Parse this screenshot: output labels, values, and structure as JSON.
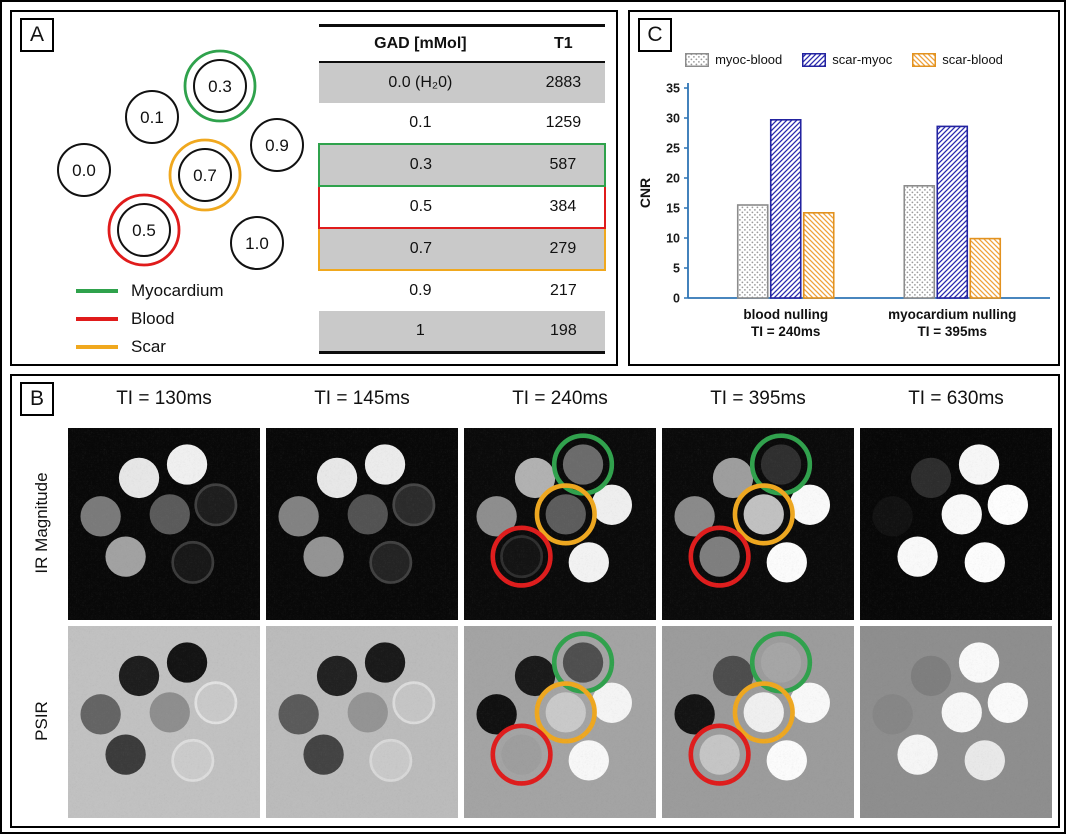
{
  "figure": {
    "panel_a": {
      "label": "A",
      "vials": [
        {
          "label": "0.3",
          "ring": "myocardium"
        },
        {
          "label": "0.1",
          "ring": null
        },
        {
          "label": "0.9",
          "ring": null
        },
        {
          "label": "0.0",
          "ring": null
        },
        {
          "label": "0.7",
          "ring": "scar"
        },
        {
          "label": "0.5",
          "ring": "blood"
        },
        {
          "label": "1.0",
          "ring": null
        }
      ],
      "legend": [
        {
          "name": "Myocardium",
          "tissue": "myocardium"
        },
        {
          "name": "Blood",
          "tissue": "blood"
        },
        {
          "name": "Scar",
          "tissue": "scar"
        }
      ],
      "table": {
        "headers": [
          "GAD [mMol]",
          "T1"
        ],
        "rows": [
          {
            "gad": "0.0 (H₂0)",
            "t1": "2883",
            "shaded": true,
            "outline": null
          },
          {
            "gad": "0.1",
            "t1": "1259",
            "shaded": false,
            "outline": null
          },
          {
            "gad": "0.3",
            "t1": "587",
            "shaded": true,
            "outline": "myocardium"
          },
          {
            "gad": "0.5",
            "t1": "384",
            "shaded": false,
            "outline": "blood"
          },
          {
            "gad": "0.7",
            "t1": "279",
            "shaded": true,
            "outline": "scar"
          },
          {
            "gad": "0.9",
            "t1": "217",
            "shaded": false,
            "outline": null
          },
          {
            "gad": "1",
            "t1": "198",
            "shaded": true,
            "outline": null
          }
        ]
      }
    },
    "panel_c": {
      "label": "C"
    },
    "panel_b": {
      "label": "B",
      "column_headers": [
        "TI = 130ms",
        "TI = 145ms",
        "TI = 240ms",
        "TI = 395ms",
        "TI = 630ms"
      ],
      "row_labels": [
        "IR Magnitude",
        "PSIR"
      ],
      "images": [
        {
          "row": "IR Magnitude",
          "column": "TI = 130ms",
          "bg": "#070707",
          "vials": {
            "0.0": "#7a7a7a",
            "0.1": "#e8e8e8",
            "0.3": "#f1f1f1",
            "0.5": "#a2a2a2",
            "0.7": "#5a5a5a",
            "0.9": "#1c1c1c",
            "1.0": "#161616"
          },
          "edges": {
            "0.9": "#3f3f3f",
            "1.0": "#3a3a3a"
          },
          "rings": {}
        },
        {
          "row": "IR Magnitude",
          "column": "TI = 145ms",
          "bg": "#070707",
          "vials": {
            "0.0": "#828282",
            "0.1": "#e9e9e9",
            "0.3": "#ededed",
            "0.5": "#949494",
            "0.7": "#525252",
            "0.9": "#2a2a2a",
            "1.0": "#222222"
          },
          "edges": {
            "0.9": "#454545",
            "1.0": "#404040"
          },
          "rings": {}
        },
        {
          "row": "IR Magnitude",
          "column": "TI = 240ms",
          "bg": "#090909",
          "vials": {
            "0.0": "#8e8e8e",
            "0.1": "#b2b2b2",
            "0.3": "#6b6b6b",
            "0.5": "#121212",
            "0.7": "#5c5c5c",
            "0.9": "#f0f0f0",
            "1.0": "#f4f4f4"
          },
          "edges": {
            "0.5": "#2e2e2e"
          },
          "rings": {
            "0.3": "myocardium",
            "0.7": "scar",
            "0.5": "blood"
          }
        },
        {
          "row": "IR Magnitude",
          "column": "TI = 395ms",
          "bg": "#090909",
          "vials": {
            "0.0": "#8a8a8a",
            "0.1": "#9e9e9e",
            "0.3": "#2e2e2e",
            "0.5": "#7e7e7e",
            "0.7": "#c2c2c2",
            "0.9": "#fbfbfb",
            "1.0": "#fdfdfd"
          },
          "edges": {},
          "rings": {
            "0.3": "myocardium",
            "0.7": "scar",
            "0.5": "blood"
          }
        },
        {
          "row": "IR Magnitude",
          "column": "TI = 630ms",
          "bg": "#060606",
          "vials": {
            "0.0": "#101010",
            "0.1": "#2c2c2c",
            "0.3": "#f8f8f8",
            "0.5": "#fbfbfb",
            "0.7": "#fbfbfb",
            "0.9": "#ffffff",
            "1.0": "#fefefe"
          },
          "edges": {},
          "rings": {}
        },
        {
          "row": "PSIR",
          "column": "TI = 130ms",
          "bg": "#c2c2c2",
          "vials": {
            "0.0": "#646464",
            "0.1": "#1c1c1c",
            "0.3": "#121212",
            "0.5": "#3a3a3a",
            "0.7": "#8e8e8e",
            "0.9": "#cacaca",
            "1.0": "#cccccc"
          },
          "edges": {
            "0.9": "#e3e3e3",
            "1.0": "#dedede"
          },
          "rings": {}
        },
        {
          "row": "PSIR",
          "column": "TI = 145ms",
          "bg": "#bcbcbc",
          "vials": {
            "0.0": "#5a5a5a",
            "0.1": "#202020",
            "0.3": "#181818",
            "0.5": "#424242",
            "0.7": "#949494",
            "0.9": "#c6c6c6",
            "1.0": "#cacaca"
          },
          "edges": {
            "0.9": "#dddddd",
            "1.0": "#d9d9d9"
          },
          "rings": {}
        },
        {
          "row": "PSIR",
          "column": "TI = 240ms",
          "bg": "#a4a4a4",
          "vials": {
            "0.0": "#0f0f0f",
            "0.1": "#181818",
            "0.3": "#4e4e4e",
            "0.5": "#9e9e9e",
            "0.7": "#cacaca",
            "0.9": "#f6f6f6",
            "1.0": "#f9f9f9"
          },
          "edges": {},
          "rings": {
            "0.3": "myocardium",
            "0.7": "scar",
            "0.5": "blood"
          }
        },
        {
          "row": "PSIR",
          "column": "TI = 395ms",
          "bg": "#9c9c9c",
          "vials": {
            "0.0": "#121212",
            "0.1": "#4c4c4c",
            "0.3": "#a6a6a6",
            "0.5": "#c6c6c6",
            "0.7": "#f1f1f1",
            "0.9": "#fafafa",
            "1.0": "#fdfdfd"
          },
          "edges": {},
          "rings": {
            "0.3": "myocardium",
            "0.7": "scar",
            "0.5": "blood"
          }
        },
        {
          "row": "PSIR",
          "column": "TI = 630ms",
          "bg": "#8e8e8e",
          "vials": {
            "0.0": "#868686",
            "0.1": "#7e7e7e",
            "0.3": "#fbfbfb",
            "0.5": "#f7f7f7",
            "0.7": "#f9f9f9",
            "0.9": "#fcfcfc",
            "1.0": "#eaeaea"
          },
          "edges": {},
          "rings": {}
        }
      ]
    }
  },
  "tissue_colors": {
    "myocardium": "#2fa24c",
    "blood": "#e01b1b",
    "scar": "#f0a81e"
  },
  "chart_data": {
    "type": "bar",
    "title": "",
    "xlabel": "",
    "ylabel": "CNR",
    "ylim": [
      0,
      35
    ],
    "yticks": [
      0,
      5,
      10,
      15,
      20,
      25,
      30,
      35
    ],
    "grid": false,
    "legend_position": "top",
    "axis_color": "#2e74b5",
    "categories": [
      [
        "blood nulling",
        "TI = 240ms"
      ],
      [
        "myocardium nulling",
        "TI = 395ms"
      ]
    ],
    "series": [
      {
        "name": "myoc-blood",
        "values": [
          15.5,
          18.7
        ],
        "edge": "#8c8c8c",
        "pattern": "dots",
        "pattern_color": "#9a9a9a"
      },
      {
        "name": "scar-myoc",
        "values": [
          29.7,
          28.6
        ],
        "edge": "#2323a0",
        "pattern": "diag-up",
        "pattern_color": "#2a2aae"
      },
      {
        "name": "scar-blood",
        "values": [
          14.2,
          9.9
        ],
        "edge": "#e2921f",
        "pattern": "diag-down",
        "pattern_color": "#efa13a"
      }
    ]
  }
}
